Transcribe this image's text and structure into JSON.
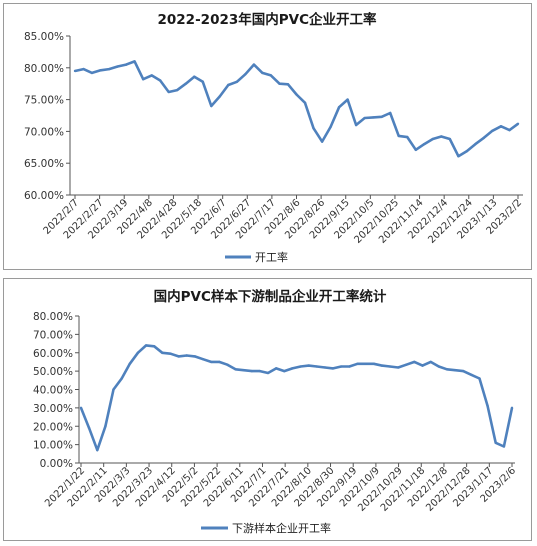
{
  "chart_data": [
    {
      "type": "line",
      "title": "2022-2023年国内PVC企业开工率",
      "xlabel": "",
      "ylabel": "",
      "ylim": [
        60,
        85
      ],
      "y_ticks": [
        "60.00%",
        "65.00%",
        "70.00%",
        "75.00%",
        "80.00%",
        "85.00%"
      ],
      "x_tick_labels": [
        "2022/2/7",
        "2022/2/27",
        "2022/3/19",
        "2022/4/8",
        "2022/4/28",
        "2022/5/18",
        "2022/6/7",
        "2022/6/27",
        "2022/7/17",
        "2022/8/6",
        "2022/8/26",
        "2022/9/15",
        "2022/10/5",
        "2022/10/25",
        "2022/11/14",
        "2022/12/4",
        "2022/12/24",
        "2023/1/13",
        "2023/2/2"
      ],
      "legend_position": "bottom",
      "color": "#4f81bd",
      "series": [
        {
          "name": "开工率",
          "values": [
            79.5,
            79.8,
            79.2,
            79.6,
            79.8,
            80.2,
            80.5,
            81.0,
            78.2,
            78.8,
            78.0,
            76.2,
            76.5,
            77.5,
            78.6,
            77.8,
            74.0,
            75.5,
            77.3,
            77.8,
            79.0,
            80.5,
            79.2,
            78.8,
            77.5,
            77.4,
            75.8,
            74.5,
            70.5,
            68.4,
            70.7,
            73.8,
            75.0,
            71.0,
            72.1,
            72.2,
            72.3,
            72.9,
            69.3,
            69.1,
            67.1,
            68.0,
            68.8,
            69.2,
            68.8,
            66.1,
            66.9,
            68.0,
            69.0,
            70.1,
            70.8,
            70.2,
            71.2
          ]
        }
      ]
    },
    {
      "type": "line",
      "title": "国内PVC样本下游制品企业开工率统计",
      "xlabel": "",
      "ylabel": "",
      "ylim": [
        0,
        80
      ],
      "y_ticks": [
        "0.00%",
        "10.00%",
        "20.00%",
        "30.00%",
        "40.00%",
        "50.00%",
        "60.00%",
        "70.00%",
        "80.00%"
      ],
      "x_tick_labels": [
        "2022/1/22",
        "2022/2/11",
        "2022/3/3",
        "2022/3/23",
        "2022/4/12",
        "2022/5/2",
        "2022/5/22",
        "2022/6/11",
        "2022/7/1",
        "2022/7/21",
        "2022/8/10",
        "2022/8/30",
        "2022/9/19",
        "2022/10/9",
        "2022/10/29",
        "2022/11/18",
        "2022/12/8",
        "2022/12/28",
        "2023/1/17",
        "2023/2/6"
      ],
      "legend_position": "bottom",
      "color": "#4f81bd",
      "series": [
        {
          "name": "下游样本企业开工率",
          "values": [
            30.0,
            19.0,
            7.0,
            20.0,
            40.0,
            46.0,
            54.0,
            60.0,
            64.0,
            63.5,
            60.0,
            59.5,
            58.0,
            58.5,
            58.0,
            56.5,
            55.0,
            55.0,
            53.5,
            51.0,
            50.5,
            50.0,
            50.0,
            49.0,
            51.5,
            50.0,
            51.5,
            52.5,
            53.0,
            52.5,
            52.0,
            51.5,
            52.5,
            52.5,
            54.0,
            54.0,
            54.0,
            53.0,
            52.5,
            52.0,
            53.5,
            55.0,
            53.0,
            55.0,
            52.5,
            51.0,
            50.5,
            50.0,
            48.0,
            46.0,
            31.0,
            11.0,
            9.0,
            30.0
          ]
        }
      ]
    }
  ]
}
